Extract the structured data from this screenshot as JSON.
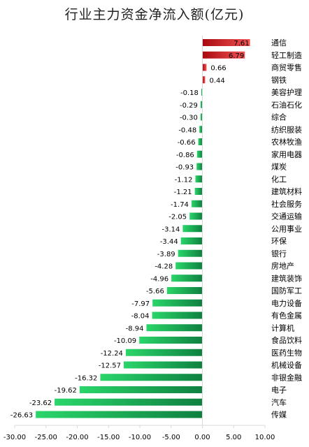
{
  "chart_data": {
    "type": "bar",
    "orientation": "horizontal",
    "title": "行业主力资金净流入额(亿元)",
    "xlim": [
      -30,
      10
    ],
    "xticks": [
      "-30.00",
      "-25.00",
      "-20.00",
      "-15.00",
      "-10.00",
      "-5.00",
      "0.00",
      "5.00",
      "10.00"
    ],
    "categories": [
      "通信",
      "轻工制造",
      "商贸零售",
      "钢铁",
      "美容护理",
      "石油石化",
      "综合",
      "纺织服装",
      "农林牧渔",
      "家用电器",
      "煤炭",
      "化工",
      "建筑材料",
      "社会服务",
      "交通运输",
      "公用事业",
      "环保",
      "银行",
      "房地产",
      "建筑装饰",
      "国防军工",
      "电力设备",
      "有色金属",
      "计算机",
      "食品饮料",
      "医药生物",
      "机械设备",
      "非银金融",
      "电子",
      "汽车",
      "传媒"
    ],
    "values": [
      7.61,
      6.79,
      0.66,
      0.44,
      -0.18,
      -0.29,
      -0.3,
      -0.48,
      -0.66,
      -0.86,
      -0.93,
      -1.12,
      -1.21,
      -1.74,
      -2.05,
      -3.14,
      -3.44,
      -3.89,
      -4.28,
      -4.96,
      -5.66,
      -7.97,
      -8.04,
      -8.94,
      -10.09,
      -12.24,
      -12.57,
      -16.32,
      -19.62,
      -23.62,
      -26.63
    ],
    "labels": [
      "7.61",
      "6.79",
      "0.66",
      "0.44",
      "-0.18",
      "-0.29",
      "-0.30",
      "-0.48",
      "-0.66",
      "-0.86",
      "-0.93",
      "-1.12",
      "-1.21",
      "-1.74",
      "-2.05",
      "-3.14",
      "-3.44",
      "-3.89",
      "-4.28",
      "-4.96",
      "-5.66",
      "-7.97",
      "-8.04",
      "-8.94",
      "-10.09",
      "-12.24",
      "-12.57",
      "-16.32",
      "-19.62",
      "-23.62",
      "-26.63"
    ],
    "positive_color_light": "#f25454",
    "positive_color_dark": "#a8090f",
    "negative_color_light": "#2ad66a",
    "negative_color_dark": "#0e8040",
    "grid": false,
    "legend": "none"
  }
}
